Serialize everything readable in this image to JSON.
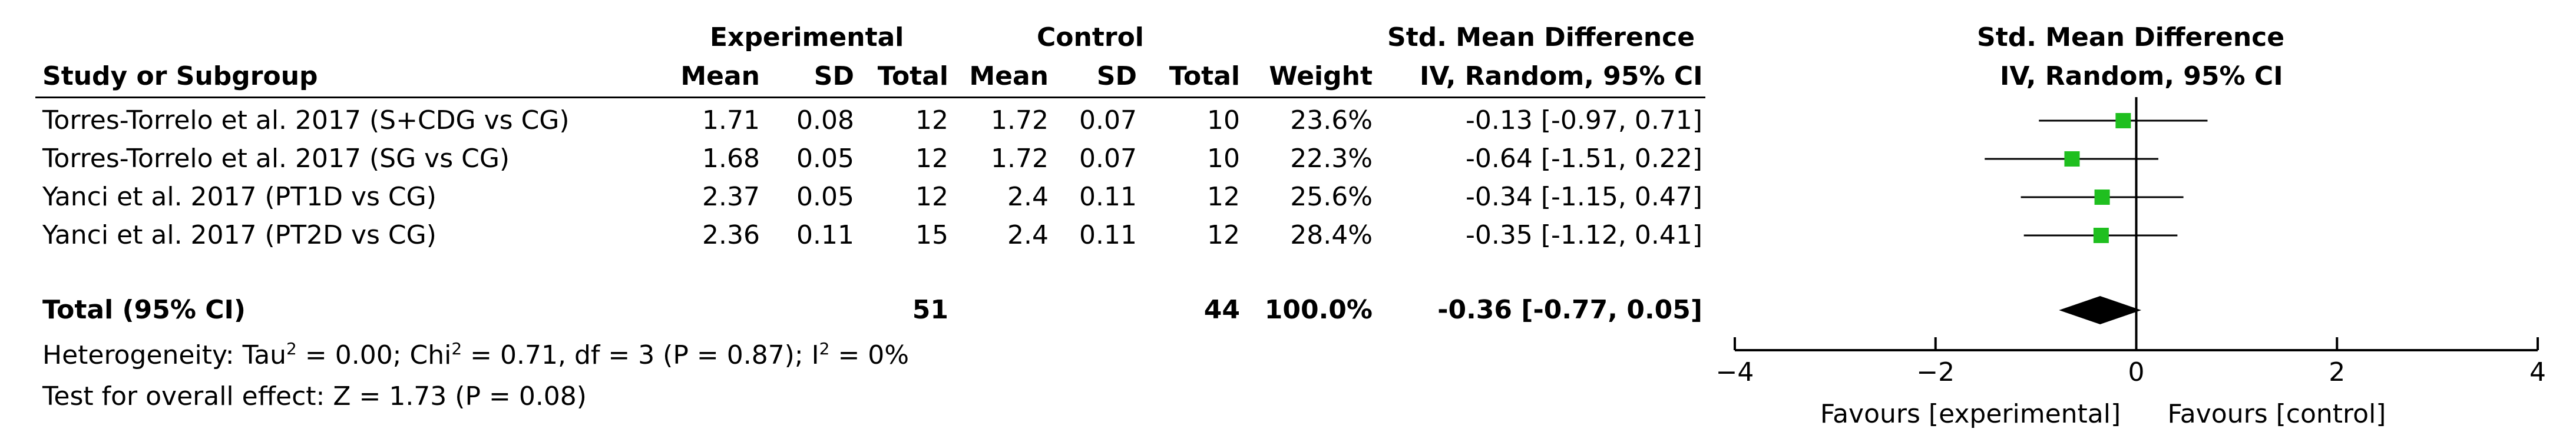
{
  "header": {
    "group_experimental": "Experimental",
    "group_control": "Control",
    "smd_title": "Std. Mean Difference",
    "plot_title": "Std. Mean Difference",
    "col_study": "Study or Subgroup",
    "col_mean_e": "Mean",
    "col_sd_e": "SD",
    "col_total_e": "Total",
    "col_mean_c": "Mean",
    "col_sd_c": "SD",
    "col_total_c": "Total",
    "col_weight": "Weight",
    "col_method": "IV, Random, 95% CI",
    "plot_method": "IV, Random, 95% CI"
  },
  "studies": [
    {
      "name": "Torres-Torrelo et al. 2017 (S+CDG vs CG)",
      "mean_e": "1.71",
      "sd_e": "0.08",
      "total_e": "12",
      "mean_c": "1.72",
      "sd_c": "0.07",
      "total_c": "10",
      "weight": "23.6%",
      "ci_text": "-0.13 [-0.97, 0.71]"
    },
    {
      "name": "Torres-Torrelo et al. 2017 (SG vs CG)",
      "mean_e": "1.68",
      "sd_e": "0.05",
      "total_e": "12",
      "mean_c": "1.72",
      "sd_c": "0.07",
      "total_c": "10",
      "weight": "22.3%",
      "ci_text": "-0.64 [-1.51, 0.22]"
    },
    {
      "name": "Yanci et al. 2017 (PT1D vs CG)",
      "mean_e": "2.37",
      "sd_e": "0.05",
      "total_e": "12",
      "mean_c": "2.4",
      "sd_c": "0.11",
      "total_c": "12",
      "weight": "25.6%",
      "ci_text": "-0.34 [-1.15, 0.47]"
    },
    {
      "name": "Yanci et al. 2017 (PT2D vs CG)",
      "mean_e": "2.36",
      "sd_e": "0.11",
      "total_e": "15",
      "mean_c": "2.4",
      "sd_c": "0.11",
      "total_c": "12",
      "weight": "28.4%",
      "ci_text": "-0.35 [-1.12, 0.41]"
    }
  ],
  "total": {
    "label": "Total (95% CI)",
    "total_e": "51",
    "total_c": "44",
    "weight": "100.0%",
    "ci_text": "-0.36 [-0.77, 0.05]"
  },
  "heterogeneity": {
    "prefix": "Heterogeneity: Tau",
    "sup1": "2",
    "mid1": " = 0.00; Chi",
    "sup2": "2",
    "mid2": " = 0.71, df = 3 (P = 0.87); I",
    "sup3": "2",
    "suffix": " = 0%"
  },
  "overall_effect": "Test for overall effect: Z = 1.73 (P = 0.08)",
  "axis": {
    "favours_left": "Favours [experimental]",
    "favours_right": "Favours [control]"
  },
  "colors": {
    "marker": "#1fbf1f",
    "line": "#000000",
    "diamond": "#000000"
  },
  "chart_data": {
    "type": "forest",
    "xlim": [
      -4,
      4
    ],
    "ticks": [
      -4,
      -2,
      0,
      2,
      4
    ],
    "tick_labels": [
      "−4",
      "−2",
      "0",
      "2",
      "4"
    ],
    "points": [
      {
        "est": -0.13,
        "lo": -0.97,
        "hi": 0.71,
        "weight": 23.6
      },
      {
        "est": -0.64,
        "lo": -1.51,
        "hi": 0.22,
        "weight": 22.3
      },
      {
        "est": -0.34,
        "lo": -1.15,
        "hi": 0.47,
        "weight": 25.6
      },
      {
        "est": -0.35,
        "lo": -1.12,
        "hi": 0.41,
        "weight": 28.4
      }
    ],
    "pooled": {
      "est": -0.36,
      "lo": -0.77,
      "hi": 0.05
    }
  }
}
